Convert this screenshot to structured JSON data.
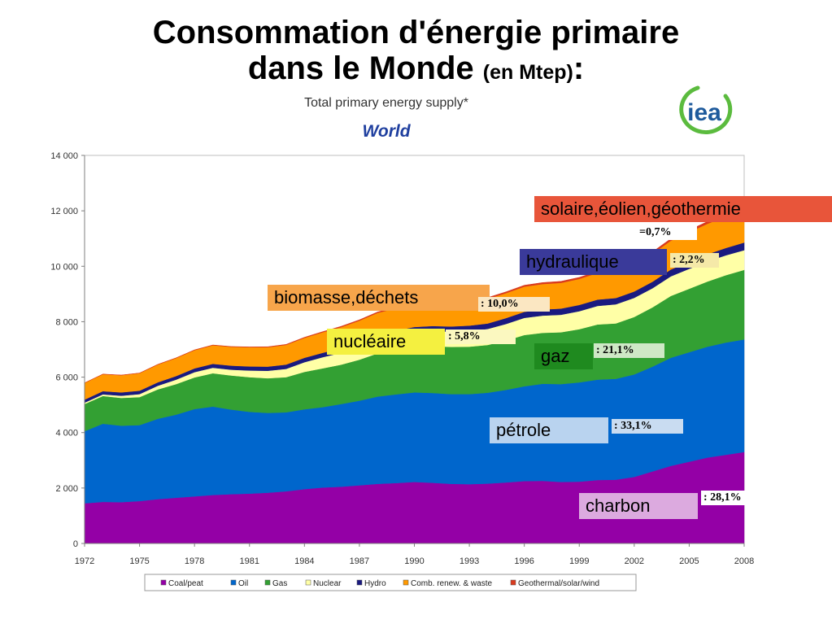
{
  "slide": {
    "title_line1": "Consommation d'énergie primaire",
    "title_line2": "dans le Monde",
    "title_unit": "(en Mtep)",
    "title_colon": ":"
  },
  "logo": {
    "text": "iea",
    "icon": "iea-logo"
  },
  "colors": {
    "coal": "#9400a6",
    "oil": "#0066cc",
    "gas": "#33a033",
    "nuclear": "#ffffa6",
    "hydro": "#1a1a80",
    "renew": "#ff9900",
    "geo": "#d93b1e"
  },
  "annotations": [
    {
      "key": "geo",
      "label": "solaire,éolien,géothermie",
      "pct": "=0,7%",
      "bg": "#e8553a"
    },
    {
      "key": "hydro",
      "label": "hydraulique",
      "pct": ": 2,2%",
      "bg": "#3a3a9a"
    },
    {
      "key": "renew",
      "label": "biomasse,déchets",
      "pct": ": 10,0%",
      "bg": "#f7a54b"
    },
    {
      "key": "nuclear",
      "label": "nucléaire",
      "pct": ": 5,8%",
      "bg": "#f4f040"
    },
    {
      "key": "gas",
      "label": "gaz",
      "pct": ": 21,1%",
      "bg": "#1f8a1f"
    },
    {
      "key": "oil",
      "label": "pétrole",
      "pct": ": 33,1%",
      "bg": "#b9d3ef"
    },
    {
      "key": "coal",
      "label": "charbon",
      "pct": ": 28,1%",
      "bg": "#dcaadf"
    }
  ],
  "chart_data": {
    "type": "area",
    "title": "Total primary energy supply*",
    "subtitle": "World",
    "x": [
      1972,
      1973,
      1974,
      1975,
      1976,
      1977,
      1978,
      1979,
      1980,
      1981,
      1982,
      1983,
      1984,
      1985,
      1986,
      1987,
      1988,
      1989,
      1990,
      1991,
      1992,
      1993,
      1994,
      1995,
      1996,
      1997,
      1998,
      1999,
      2000,
      2001,
      2002,
      2003,
      2004,
      2005,
      2006,
      2007,
      2008
    ],
    "x_ticks": [
      "1972",
      "1975",
      "1978",
      "1981",
      "1984",
      "1987",
      "1990",
      "1993",
      "1996",
      "1999",
      "2002",
      "2005",
      "2008"
    ],
    "y_ticks": [
      "0",
      "2 000",
      "4 000",
      "6 000",
      "8 000",
      "10 000",
      "12 000",
      "14 000"
    ],
    "ylim": [
      0,
      14000
    ],
    "grid": false,
    "legend_position": "bottom",
    "series": [
      {
        "key": "coal",
        "name": "Coal/peat",
        "values": [
          1450,
          1500,
          1490,
          1530,
          1600,
          1650,
          1700,
          1750,
          1780,
          1800,
          1830,
          1880,
          1960,
          2020,
          2050,
          2100,
          2150,
          2180,
          2220,
          2190,
          2150,
          2140,
          2160,
          2200,
          2250,
          2260,
          2220,
          2230,
          2290,
          2300,
          2400,
          2600,
          2800,
          2950,
          3100,
          3200,
          3300
        ]
      },
      {
        "key": "oil",
        "name": "Oil",
        "values": [
          2600,
          2820,
          2760,
          2740,
          2900,
          3000,
          3150,
          3190,
          3050,
          2950,
          2880,
          2850,
          2880,
          2900,
          2980,
          3050,
          3150,
          3200,
          3230,
          3240,
          3240,
          3250,
          3280,
          3340,
          3420,
          3500,
          3530,
          3580,
          3620,
          3640,
          3700,
          3780,
          3900,
          3950,
          4000,
          4050,
          4060
        ]
      },
      {
        "key": "gas",
        "name": "Gas",
        "values": [
          980,
          1000,
          1000,
          1010,
          1060,
          1100,
          1140,
          1200,
          1230,
          1250,
          1250,
          1270,
          1350,
          1400,
          1420,
          1480,
          1560,
          1620,
          1660,
          1690,
          1700,
          1710,
          1720,
          1780,
          1850,
          1840,
          1870,
          1920,
          1990,
          2000,
          2070,
          2140,
          2230,
          2290,
          2350,
          2430,
          2510
        ]
      },
      {
        "key": "nuclear",
        "name": "Nuclear",
        "values": [
          50,
          60,
          80,
          110,
          130,
          160,
          190,
          200,
          210,
          240,
          270,
          300,
          350,
          400,
          430,
          470,
          500,
          510,
          520,
          540,
          550,
          570,
          580,
          600,
          620,
          620,
          630,
          650,
          670,
          690,
          690,
          690,
          710,
          720,
          725,
          715,
          712
        ]
      },
      {
        "key": "hydro",
        "name": "Hydro",
        "values": [
          110,
          115,
          120,
          123,
          125,
          130,
          135,
          140,
          145,
          148,
          150,
          155,
          158,
          160,
          165,
          168,
          170,
          175,
          180,
          185,
          188,
          190,
          195,
          210,
          215,
          220,
          222,
          225,
          228,
          225,
          230,
          235,
          245,
          250,
          260,
          265,
          275
        ]
      },
      {
        "key": "renew",
        "name": "Comb. renew. & waste",
        "values": [
          600,
          610,
          620,
          630,
          640,
          650,
          660,
          670,
          680,
          690,
          700,
          710,
          720,
          740,
          760,
          770,
          790,
          800,
          850,
          860,
          870,
          880,
          890,
          900,
          910,
          920,
          930,
          940,
          960,
          970,
          990,
          1010,
          1040,
          1070,
          1100,
          1130,
          1150
        ]
      },
      {
        "key": "geo",
        "name": "Geothermal/solar/wind",
        "values": [
          5,
          5,
          6,
          6,
          7,
          8,
          9,
          10,
          12,
          14,
          16,
          18,
          20,
          24,
          28,
          30,
          34,
          38,
          40,
          40,
          42,
          44,
          46,
          48,
          50,
          52,
          54,
          56,
          60,
          62,
          66,
          68,
          72,
          76,
          80,
          84,
          90
        ]
      }
    ]
  }
}
